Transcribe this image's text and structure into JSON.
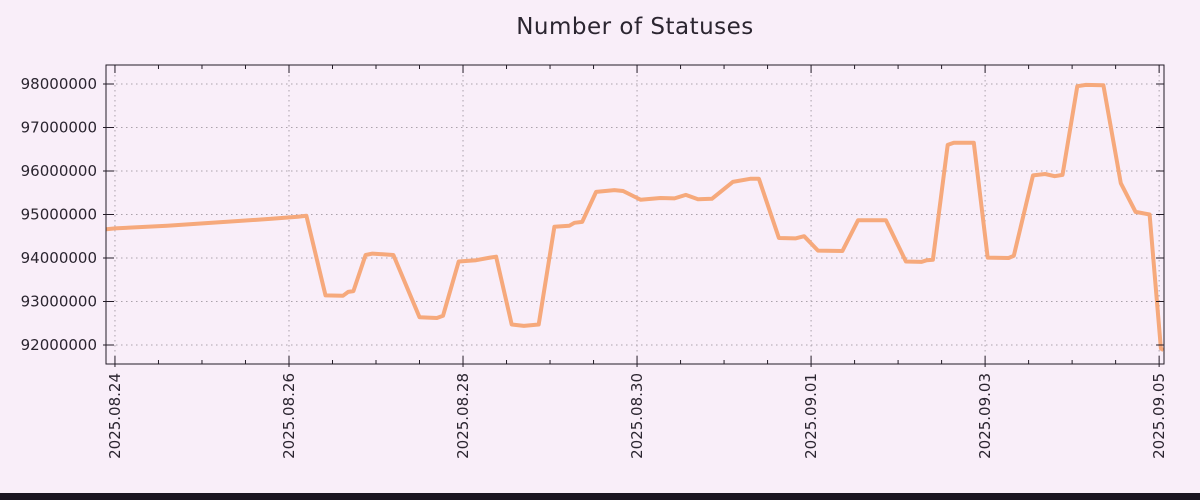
{
  "page": {
    "background": "#f9eef9",
    "bottom_bar_color": "#1a1420"
  },
  "chart_data": {
    "type": "line",
    "title": "Number of Statuses",
    "legend": "none",
    "grid": {
      "style": "dotted",
      "color": "#aaa1ab"
    },
    "border_color": "#241c28",
    "text_color": "#2b2530",
    "x_axis": {
      "tick_labels": [
        "2025.08.24",
        "2025.08.26",
        "2025.08.28",
        "2025.08.30",
        "2025.09.01",
        "2025.09.03",
        "2025.09.05"
      ],
      "tick_days": [
        0,
        2,
        4,
        6,
        8,
        10,
        12
      ],
      "minor_tick_interval_days": 0.5,
      "range_days": [
        -0.103,
        12.056
      ]
    },
    "y_axis": {
      "tick_labels": [
        "92000000",
        "93000000",
        "94000000",
        "95000000",
        "96000000",
        "97000000",
        "98000000"
      ],
      "tick_values": [
        92000000,
        93000000,
        94000000,
        95000000,
        96000000,
        97000000,
        98000000
      ],
      "range": [
        91563000,
        98437000
      ]
    },
    "series": [
      {
        "name": "statuses",
        "color": "#f6a97c",
        "line_width": 4,
        "points_day_value": [
          [
            -0.1,
            94660000
          ],
          [
            0.0,
            94680000
          ],
          [
            0.6,
            94740000
          ],
          [
            1.2,
            94820000
          ],
          [
            1.8,
            94900000
          ],
          [
            2.1,
            94950000
          ],
          [
            2.2,
            94970000
          ],
          [
            2.42,
            93140000
          ],
          [
            2.62,
            93130000
          ],
          [
            2.68,
            93220000
          ],
          [
            2.74,
            93240000
          ],
          [
            2.88,
            94070000
          ],
          [
            2.96,
            94100000
          ],
          [
            3.2,
            94070000
          ],
          [
            3.5,
            92640000
          ],
          [
            3.7,
            92620000
          ],
          [
            3.77,
            92670000
          ],
          [
            3.95,
            93920000
          ],
          [
            4.15,
            93950000
          ],
          [
            4.31,
            94010000
          ],
          [
            4.38,
            94030000
          ],
          [
            4.56,
            92470000
          ],
          [
            4.7,
            92440000
          ],
          [
            4.87,
            92470000
          ],
          [
            5.05,
            94720000
          ],
          [
            5.22,
            94740000
          ],
          [
            5.28,
            94810000
          ],
          [
            5.37,
            94830000
          ],
          [
            5.53,
            95520000
          ],
          [
            5.74,
            95560000
          ],
          [
            5.84,
            95540000
          ],
          [
            6.04,
            95340000
          ],
          [
            6.27,
            95380000
          ],
          [
            6.43,
            95370000
          ],
          [
            6.56,
            95450000
          ],
          [
            6.7,
            95350000
          ],
          [
            6.86,
            95360000
          ],
          [
            7.1,
            95750000
          ],
          [
            7.3,
            95820000
          ],
          [
            7.4,
            95820000
          ],
          [
            7.63,
            94460000
          ],
          [
            7.82,
            94450000
          ],
          [
            7.92,
            94500000
          ],
          [
            8.08,
            94170000
          ],
          [
            8.36,
            94160000
          ],
          [
            8.54,
            94870000
          ],
          [
            8.86,
            94870000
          ],
          [
            9.09,
            93920000
          ],
          [
            9.27,
            93910000
          ],
          [
            9.33,
            93950000
          ],
          [
            9.4,
            93960000
          ],
          [
            9.57,
            96600000
          ],
          [
            9.64,
            96650000
          ],
          [
            9.87,
            96650000
          ],
          [
            10.03,
            94010000
          ],
          [
            10.27,
            94000000
          ],
          [
            10.33,
            94050000
          ],
          [
            10.55,
            95900000
          ],
          [
            10.69,
            95930000
          ],
          [
            10.8,
            95880000
          ],
          [
            10.89,
            95910000
          ],
          [
            11.06,
            97950000
          ],
          [
            11.16,
            97980000
          ],
          [
            11.36,
            97970000
          ],
          [
            11.56,
            95720000
          ],
          [
            11.73,
            95060000
          ],
          [
            11.89,
            95000000
          ],
          [
            12.02,
            91920000
          ],
          [
            12.05,
            91880000
          ]
        ]
      }
    ]
  }
}
